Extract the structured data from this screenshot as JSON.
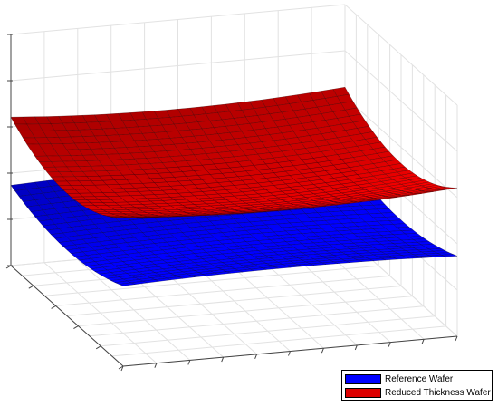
{
  "chart_data": {
    "type": "surface",
    "view": "3d",
    "grid": true,
    "axis_tick_labels_visible": false,
    "legend_position": "bottom-right",
    "series": [
      {
        "name": "Reference Wafer",
        "color": "#0000ff",
        "edge_color": "#000033",
        "shape": "saddle",
        "center": 0.3,
        "curvature_x": 0.25,
        "curvature_y": -0.06
      },
      {
        "name": "Reduced Thickness Wafer",
        "color": "#dd0000",
        "edge_color": "#330000",
        "shape": "bowl",
        "center": 0.5,
        "curvature_x": 0.45,
        "curvature_y": 0.12
      }
    ]
  }
}
